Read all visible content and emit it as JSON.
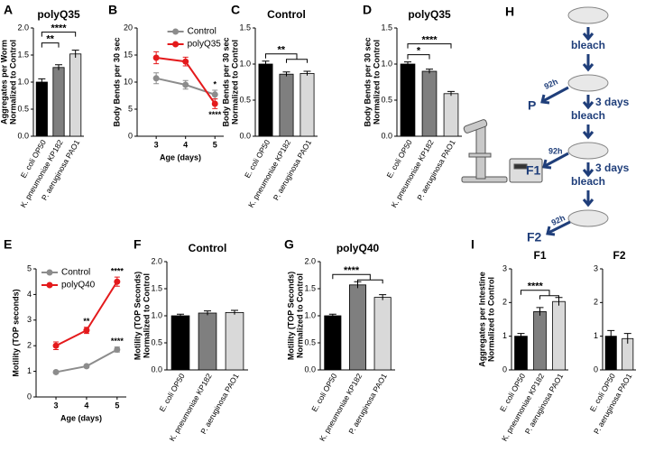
{
  "chart_data": [
    {
      "type": "bar",
      "panel": "A",
      "title": "polyQ35",
      "ylabel": [
        "Aggregates per Worm",
        "Normalized to Control"
      ],
      "categories": [
        "E. coli OP50",
        "K. pneumoniae KP182",
        "P. aeruginosa PAO1"
      ],
      "values": [
        1.0,
        1.27,
        1.52
      ],
      "errors": [
        0.06,
        0.05,
        0.07
      ],
      "colors": [
        "#000000",
        "#7f7f7f",
        "#d9d9d9"
      ],
      "ylim": [
        0,
        2
      ],
      "yticks": [
        {
          "value": 0,
          "label": "0.0"
        },
        {
          "value": 0.5,
          "label": "0.5"
        },
        {
          "value": 1,
          "label": "1.0"
        },
        {
          "value": 1.5,
          "label": "1.5"
        },
        {
          "value": 2,
          "label": "2.0"
        }
      ],
      "annotations": [
        {
          "text": "**",
          "from": 0,
          "to": 1
        },
        {
          "text": "****",
          "from": 0,
          "to": 2
        }
      ]
    },
    {
      "type": "line",
      "panel": "B",
      "ylabel": [
        "Body Bends per 30 sec"
      ],
      "xlabel": "Age (days)",
      "x": [
        3,
        4,
        5
      ],
      "xlim": [
        2.35,
        5.3
      ],
      "xticks": [
        3,
        4,
        5
      ],
      "ylim": [
        0,
        20
      ],
      "yticks": [
        0,
        5,
        10,
        15,
        20
      ],
      "legend": "upper right",
      "series": [
        {
          "name": "Control",
          "color": "#8c8c8c",
          "values": [
            10.7,
            9.5,
            7.7
          ],
          "errors": [
            1.0,
            0.8,
            0.8
          ]
        },
        {
          "name": "polyQ35",
          "color": "#e41a1c",
          "values": [
            14.5,
            13.8,
            6.0
          ],
          "errors": [
            1.1,
            0.8,
            0.9
          ]
        }
      ],
      "annotations": [
        {
          "text": "*",
          "series": 0,
          "index": 2,
          "side": "above"
        },
        {
          "text": "****",
          "series": 1,
          "index": 2,
          "side": "below"
        }
      ]
    },
    {
      "type": "bar",
      "panel": "C",
      "title": "Control",
      "ylabel": [
        "Body Bends per 30 sec",
        "Normalized to Control"
      ],
      "categories": [
        "E. coli OP50",
        "K. pneumoniae KP182",
        "P. aeruginosa PAO1"
      ],
      "values": [
        1.0,
        0.86,
        0.87
      ],
      "errors": [
        0.04,
        0.03,
        0.03
      ],
      "colors": [
        "#000000",
        "#7f7f7f",
        "#d9d9d9"
      ],
      "ylim": [
        0,
        1.5
      ],
      "yticks": [
        {
          "value": 0,
          "label": "0.0"
        },
        {
          "value": 0.5,
          "label": "0.5"
        },
        {
          "value": 1,
          "label": "1.0"
        },
        {
          "value": 1.5,
          "label": "1.5"
        }
      ],
      "annotations": [
        {
          "text": "**",
          "from": 0,
          "to": [
            1,
            2
          ]
        }
      ]
    },
    {
      "type": "bar",
      "panel": "D",
      "title": "polyQ35",
      "ylabel": [
        "Body Bends per 30 sec",
        "Normalized to Control"
      ],
      "categories": [
        "E. coli OP50",
        "K. pneumoniae KP182",
        "P. aeruginosa PAO1"
      ],
      "values": [
        1.0,
        0.9,
        0.59
      ],
      "errors": [
        0.03,
        0.03,
        0.03
      ],
      "colors": [
        "#000000",
        "#7f7f7f",
        "#d9d9d9"
      ],
      "ylim": [
        0,
        1.5
      ],
      "yticks": [
        {
          "value": 0,
          "label": "0.0"
        },
        {
          "value": 0.5,
          "label": "0.5"
        },
        {
          "value": 1,
          "label": "1.0"
        },
        {
          "value": 1.5,
          "label": "1.5"
        }
      ],
      "annotations": [
        {
          "text": "*",
          "from": 0,
          "to": 1
        },
        {
          "text": "****",
          "from": 0,
          "to": 2
        }
      ]
    },
    {
      "type": "line",
      "panel": "E",
      "ylabel": [
        "Motility (TOP seconds)"
      ],
      "xlabel": "Age (days)",
      "x": [
        3,
        4,
        5
      ],
      "xlim": [
        2.35,
        5.3
      ],
      "xticks": [
        3,
        4,
        5
      ],
      "ylim": [
        0,
        5
      ],
      "yticks": [
        0,
        1,
        2,
        3,
        4,
        5
      ],
      "legend": "upper left",
      "series": [
        {
          "name": "Control",
          "color": "#8c8c8c",
          "values": [
            0.97,
            1.2,
            1.85
          ],
          "errors": [
            0.05,
            0.06,
            0.1
          ]
        },
        {
          "name": "polyQ40",
          "color": "#e41a1c",
          "values": [
            2.0,
            2.6,
            4.5
          ],
          "errors": [
            0.15,
            0.12,
            0.18
          ]
        }
      ],
      "annotations": [
        {
          "text": "**",
          "series": 1,
          "index": 1,
          "side": "above"
        },
        {
          "text": "****",
          "series": 1,
          "index": 2,
          "side": "above"
        },
        {
          "text": "****",
          "series": 0,
          "index": 2,
          "side": "above"
        }
      ]
    },
    {
      "type": "bar",
      "panel": "F",
      "title": "Control",
      "ylabel": [
        "Motility (TOP Seconds)",
        "Normalized to Control"
      ],
      "categories": [
        "E. coli OP50",
        "K. pneumoniae KP182",
        "P. aeruginosa PAO1"
      ],
      "values": [
        1.0,
        1.05,
        1.06
      ],
      "errors": [
        0.03,
        0.04,
        0.04
      ],
      "colors": [
        "#000000",
        "#7f7f7f",
        "#d9d9d9"
      ],
      "ylim": [
        0,
        2
      ],
      "yticks": [
        {
          "value": 0,
          "label": "0.0"
        },
        {
          "value": 0.5,
          "label": "0.5"
        },
        {
          "value": 1,
          "label": "1.0"
        },
        {
          "value": 1.5,
          "label": "1.5"
        },
        {
          "value": 2,
          "label": "2.0"
        }
      ],
      "annotations": []
    },
    {
      "type": "bar",
      "panel": "G",
      "title": "polyQ40",
      "ylabel": [
        "Motility (TOP Seconds)",
        "Normalized to Control"
      ],
      "categories": [
        "E. coli OP50",
        "K. pneumoniae KP182",
        "P. aeruginosa PAO1"
      ],
      "values": [
        1.0,
        1.57,
        1.34
      ],
      "errors": [
        0.03,
        0.06,
        0.05
      ],
      "colors": [
        "#000000",
        "#7f7f7f",
        "#d9d9d9"
      ],
      "ylim": [
        0,
        2
      ],
      "yticks": [
        {
          "value": 0,
          "label": "0.0"
        },
        {
          "value": 0.5,
          "label": "0.5"
        },
        {
          "value": 1,
          "label": "1.0"
        },
        {
          "value": 1.5,
          "label": "1.5"
        },
        {
          "value": 2,
          "label": "2.0"
        }
      ],
      "annotations": [
        {
          "text": "****",
          "from": 0,
          "to": [
            1,
            2
          ]
        }
      ]
    },
    {
      "type": "bar",
      "panel": "I",
      "title": "F1",
      "ylabel": [
        "Aggregates per Intestine",
        "Normalized to Control"
      ],
      "categories": [
        "E. coli OP50",
        "K. pneumoniae KP182",
        "P. aeruginosa PAO1"
      ],
      "values": [
        1.0,
        1.73,
        2.03
      ],
      "errors": [
        0.08,
        0.12,
        0.12
      ],
      "colors": [
        "#000000",
        "#7f7f7f",
        "#d9d9d9"
      ],
      "ylim": [
        0,
        3
      ],
      "yticks": [
        0,
        1,
        2,
        3
      ],
      "annotations": [
        {
          "text": "****",
          "from": 0,
          "to": [
            1,
            2
          ]
        }
      ]
    },
    {
      "type": "bar",
      "title": "F2",
      "categories": [
        "E. coli OP50",
        "P. aeruginosa PAO1"
      ],
      "values": [
        1.0,
        0.93
      ],
      "errors": [
        0.17,
        0.15
      ],
      "colors": [
        "#000000",
        "#d9d9d9"
      ],
      "ylim": [
        0,
        3
      ],
      "yticks": [
        0,
        1,
        2,
        3
      ],
      "annotations": []
    }
  ],
  "diagram": {
    "panel": "H",
    "bleach": [
      "bleach",
      "bleach",
      "bleach"
    ],
    "days": [
      "3 days",
      "3 days"
    ],
    "hours": [
      "92h",
      "92h",
      "92h"
    ],
    "generations": [
      "P",
      "F1",
      "F2"
    ]
  }
}
